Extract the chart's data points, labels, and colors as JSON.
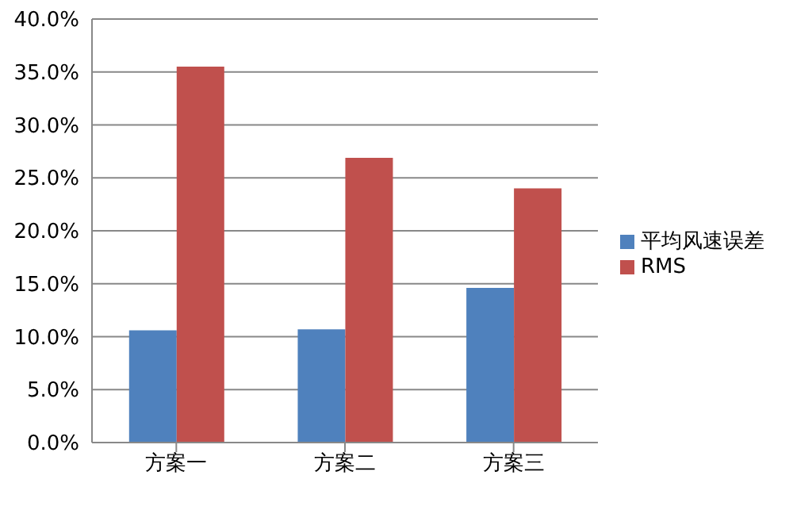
{
  "chart_data": {
    "type": "bar",
    "categories": [
      "方案一",
      "方案二",
      "方案三"
    ],
    "series": [
      {
        "name": "平均风速误差",
        "color": "#4f81bd",
        "values": [
          10.6,
          10.7,
          14.6
        ]
      },
      {
        "name": "RMS",
        "color": "#c0504d",
        "values": [
          35.5,
          26.9,
          24.0
        ]
      }
    ],
    "ylim": [
      0,
      40
    ],
    "yticks": [
      {
        "value": 0,
        "label": "0.0%"
      },
      {
        "value": 5,
        "label": "5.0%"
      },
      {
        "value": 10,
        "label": "10.0%"
      },
      {
        "value": 15,
        "label": "15.0%"
      },
      {
        "value": 20,
        "label": "20.0%"
      },
      {
        "value": 25,
        "label": "25.0%"
      },
      {
        "value": 30,
        "label": "30.0%"
      },
      {
        "value": 35,
        "label": "35.0%"
      },
      {
        "value": 40,
        "label": "40.0%"
      }
    ],
    "grid": "y",
    "legend": "right"
  }
}
